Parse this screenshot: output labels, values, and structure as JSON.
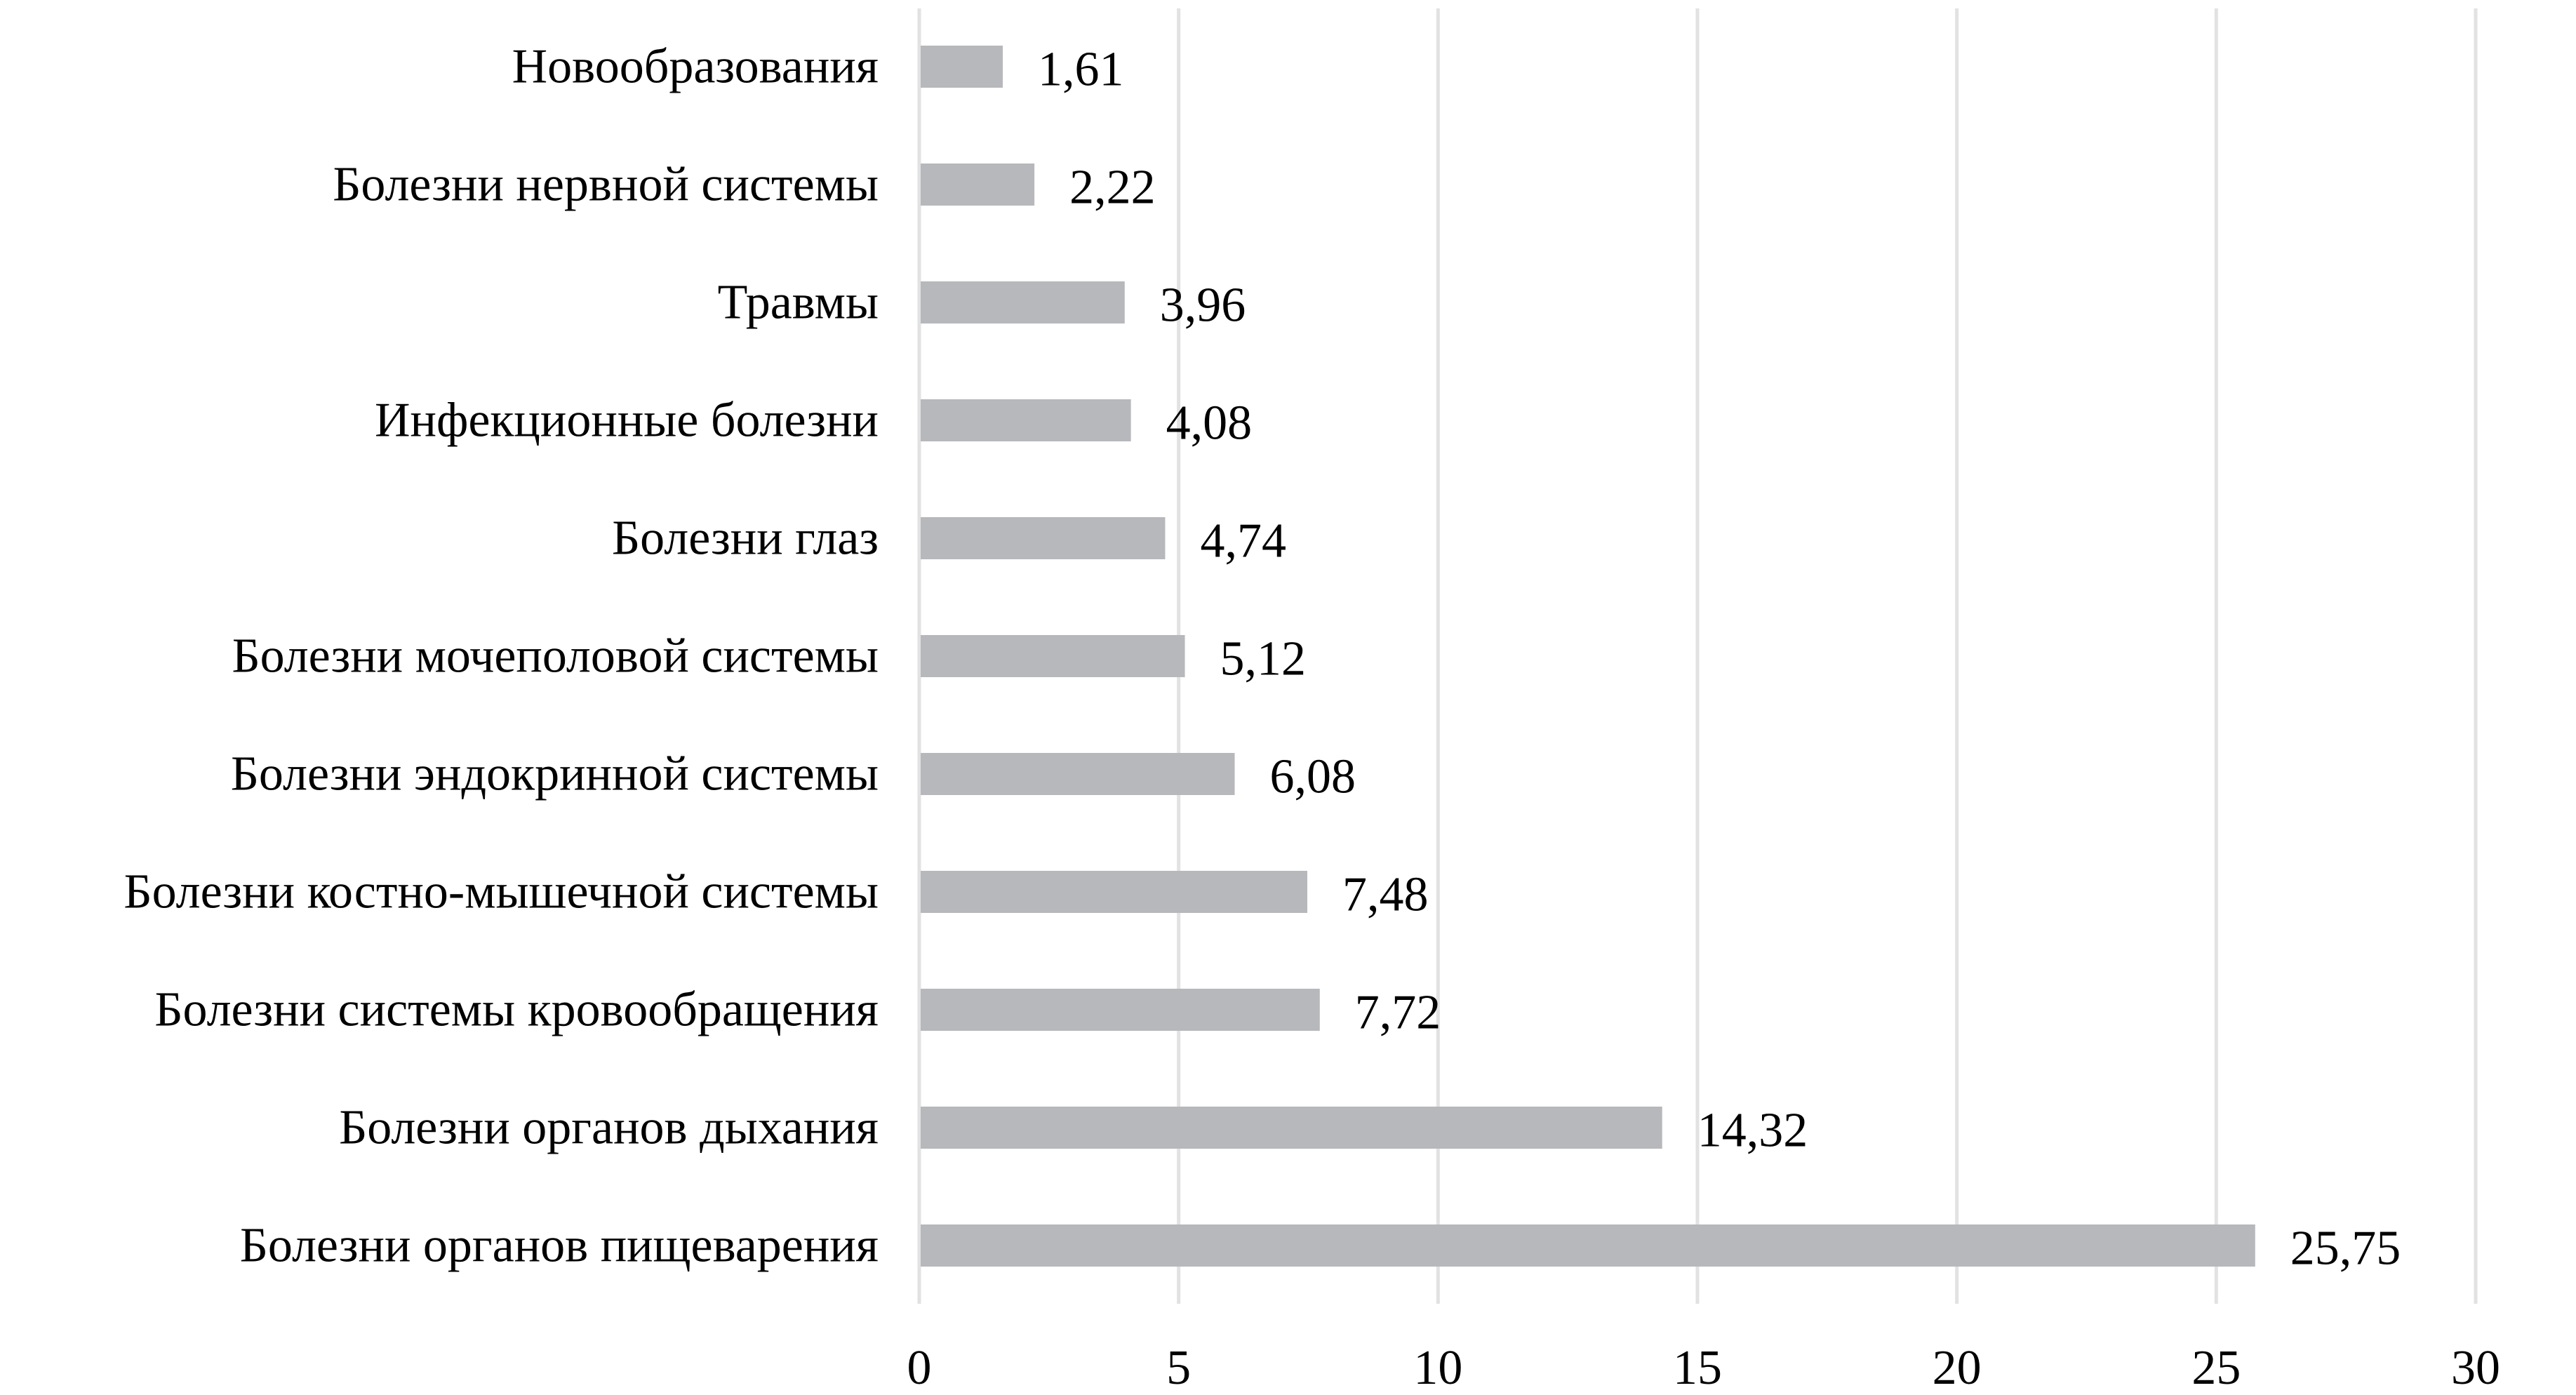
{
  "chart_data": {
    "type": "bar",
    "orientation": "horizontal",
    "title": "",
    "xlabel": "",
    "ylabel": "",
    "categories": [
      "Новообразования",
      "Болезни нервной системы",
      "Травмы",
      "Инфекционные болезни",
      "Болезни глаз",
      "Болезни мочеполовой системы",
      "Болезни эндокринной системы",
      "Болезни костно-мышечной системы",
      "Болезни системы кровообращения",
      "Болезни органов дыхания",
      "Болезни органов пищеварения"
    ],
    "values": [
      1.61,
      2.22,
      3.96,
      4.08,
      4.74,
      5.12,
      6.08,
      7.48,
      7.72,
      14.32,
      25.75
    ],
    "value_labels": [
      "1,61",
      "2,22",
      "3,96",
      "4,08",
      "4,74",
      "5,12",
      "6,08",
      "7,48",
      "7,72",
      "14,32",
      "25,75"
    ],
    "xlim": [
      0,
      30
    ],
    "xticks": [
      0,
      5,
      10,
      15,
      20,
      25,
      30
    ],
    "xtick_labels": [
      "0",
      "5",
      "10",
      "15",
      "20",
      "25",
      "30"
    ],
    "grid": "vertical",
    "legend": "none",
    "colors": {
      "bar": "#b7b8bb",
      "grid": "#e2e2e2",
      "text": "#000000"
    }
  }
}
